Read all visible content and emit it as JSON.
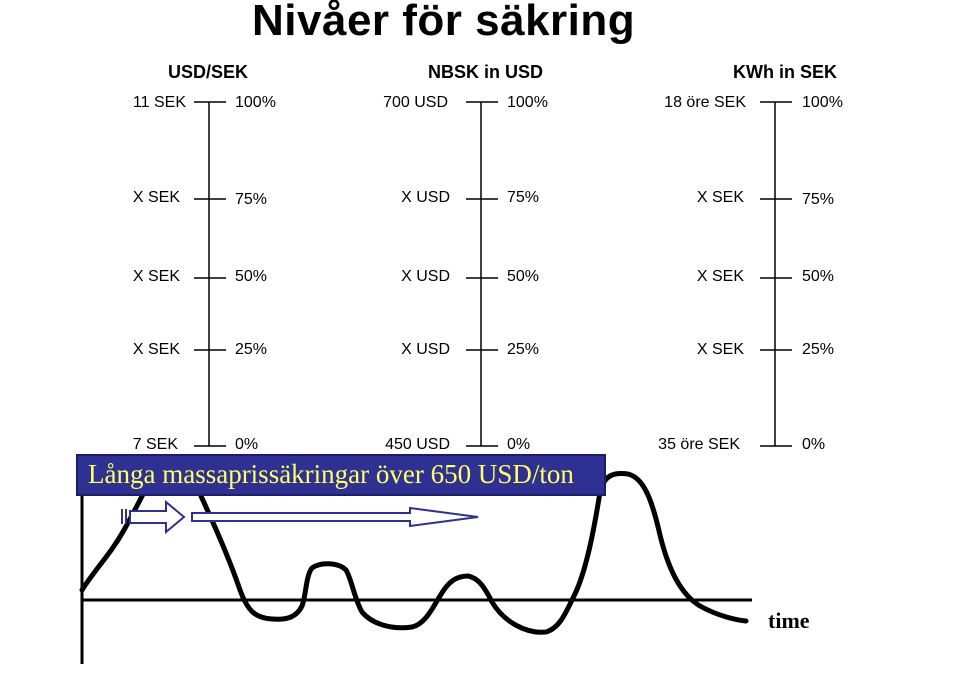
{
  "title": "Nivåer för säkring",
  "columns": [
    {
      "header": "USD/SEK",
      "levels": [
        {
          "value": "11 SEK",
          "pct": "100%"
        },
        {
          "value": "X SEK",
          "pct": "75%"
        },
        {
          "value": "X SEK",
          "pct": "50%"
        },
        {
          "value": "X SEK",
          "pct": "25%"
        },
        {
          "value": "7 SEK",
          "pct": "0%"
        }
      ]
    },
    {
      "header": "NBSK in USD",
      "levels": [
        {
          "value": "700 USD",
          "pct": "100%"
        },
        {
          "value": "X USD",
          "pct": "75%"
        },
        {
          "value": "X USD",
          "pct": "50%"
        },
        {
          "value": "X USD",
          "pct": "25%"
        },
        {
          "value": "450 USD",
          "pct": "0%"
        }
      ]
    },
    {
      "header": "KWh in SEK",
      "levels": [
        {
          "value": "18 öre SEK",
          "pct": "100%"
        },
        {
          "value": "X SEK",
          "pct": "75%"
        },
        {
          "value": "X SEK",
          "pct": "50%"
        },
        {
          "value": "X SEK",
          "pct": "25%"
        },
        {
          "value": "35 öre SEK",
          "pct": "0%"
        }
      ]
    }
  ],
  "banner": "Långa massaprissäkringar över 650 USD/ton",
  "x_axis_label": "time",
  "colors": {
    "banner_bg": "#2e3192",
    "banner_text": "#ffff66",
    "lines": "#000000"
  }
}
